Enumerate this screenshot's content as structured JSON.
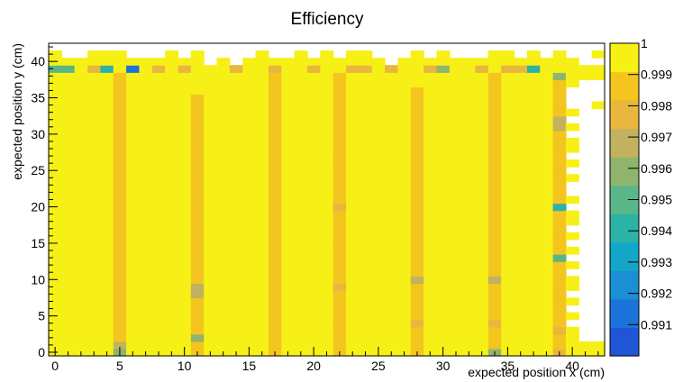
{
  "chart_data": {
    "type": "heatmap",
    "title": "Efficiency",
    "xlabel": "expected position x (cm)",
    "ylabel": "expected position y (cm)",
    "xlim": [
      -0.5,
      42.5
    ],
    "ylim": [
      -0.5,
      42.5
    ],
    "x_ticks": [
      0,
      5,
      10,
      15,
      20,
      25,
      30,
      35,
      40
    ],
    "y_ticks": [
      0,
      5,
      10,
      15,
      20,
      25,
      30,
      35,
      40
    ],
    "colorbar": {
      "range": [
        0.99,
        1.0
      ],
      "ticks": [
        0.991,
        0.992,
        0.993,
        0.994,
        0.995,
        0.996,
        0.997,
        0.998,
        0.999,
        1
      ],
      "tick_labels": [
        "0.991",
        "0.992",
        "0.993",
        "0.994",
        "0.995",
        "0.996",
        "0.997",
        "0.998",
        "0.999",
        "1"
      ],
      "colors": [
        "#1f55d6",
        "#1a73d8",
        "#1a8fd3",
        "#14a6c8",
        "#2ab3a6",
        "#58b688",
        "#8fb46d",
        "#c2b25f",
        "#e9b63e",
        "#f4c51f",
        "#f7f016"
      ]
    },
    "base_efficiency": 0.9995,
    "cells": [
      {
        "x": 0,
        "y": 39,
        "v": 0.9951
      },
      {
        "x": 1,
        "y": 39,
        "v": 0.9951
      },
      {
        "x": 3,
        "y": 39,
        "v": 0.998
      },
      {
        "x": 4,
        "y": 39,
        "v": 0.9938
      },
      {
        "x": 6,
        "y": 39,
        "v": 0.9913
      },
      {
        "x": 8,
        "y": 39,
        "v": 0.998
      },
      {
        "x": 10,
        "y": 39,
        "v": 0.998
      },
      {
        "x": 14,
        "y": 39,
        "v": 0.998
      },
      {
        "x": 17,
        "y": 39,
        "v": 0.998
      },
      {
        "x": 20,
        "y": 39,
        "v": 0.998
      },
      {
        "x": 23,
        "y": 39,
        "v": 0.998
      },
      {
        "x": 24,
        "y": 39,
        "v": 0.998
      },
      {
        "x": 26,
        "y": 39,
        "v": 0.998
      },
      {
        "x": 29,
        "y": 39,
        "v": 0.998
      },
      {
        "x": 30,
        "y": 39,
        "v": 0.9955
      },
      {
        "x": 33,
        "y": 39,
        "v": 0.998
      },
      {
        "x": 35,
        "y": 39,
        "v": 0.998
      },
      {
        "x": 36,
        "y": 39,
        "v": 0.998
      },
      {
        "x": 37,
        "y": 39,
        "v": 0.9942
      },
      {
        "x": 39,
        "y": 38,
        "v": 0.9955
      },
      {
        "x": 39,
        "y": 32,
        "v": 0.9972
      },
      {
        "x": 39,
        "y": 31,
        "v": 0.9972
      },
      {
        "x": 39,
        "y": 20,
        "v": 0.9945
      },
      {
        "x": 39,
        "y": 13,
        "v": 0.9952
      },
      {
        "x": 39,
        "y": 3,
        "v": 0.9975
      },
      {
        "x": 39,
        "y": 0,
        "v": 0.998
      },
      {
        "x": 5,
        "y": 1,
        "v": 0.997
      },
      {
        "x": 5,
        "y": 0,
        "v": 0.996
      },
      {
        "x": 11,
        "y": 9,
        "v": 0.9965
      },
      {
        "x": 11,
        "y": 8,
        "v": 0.997
      },
      {
        "x": 11,
        "y": 2,
        "v": 0.9962
      },
      {
        "x": 22,
        "y": 20,
        "v": 0.9975
      },
      {
        "x": 22,
        "y": 9,
        "v": 0.9975
      },
      {
        "x": 28,
        "y": 10,
        "v": 0.9965
      },
      {
        "x": 28,
        "y": 4,
        "v": 0.9975
      },
      {
        "x": 34,
        "y": 10,
        "v": 0.9972
      },
      {
        "x": 34,
        "y": 4,
        "v": 0.9975
      },
      {
        "x": 34,
        "y": 0,
        "v": 0.996
      }
    ],
    "columns_reduced": [
      {
        "x": 5,
        "from": 0,
        "to": 38,
        "v": 0.9989
      },
      {
        "x": 11,
        "from": 0,
        "to": 35,
        "v": 0.9988
      },
      {
        "x": 17,
        "from": 0,
        "to": 38,
        "v": 0.999
      },
      {
        "x": 22,
        "from": 0,
        "to": 38,
        "v": 0.9986
      },
      {
        "x": 28,
        "from": 0,
        "to": 36,
        "v": 0.9987
      },
      {
        "x": 34,
        "from": 0,
        "to": 38,
        "v": 0.9985
      },
      {
        "x": 39,
        "from": 0,
        "to": 38,
        "v": 0.9989
      }
    ],
    "empty_cells": [
      {
        "x": 1,
        "y": 41
      },
      {
        "x": 2,
        "y": 41
      },
      {
        "x": 6,
        "y": 41
      },
      {
        "x": 7,
        "y": 41
      },
      {
        "x": 8,
        "y": 41
      },
      {
        "x": 10,
        "y": 41
      },
      {
        "x": 12,
        "y": 41
      },
      {
        "x": 13,
        "y": 41
      },
      {
        "x": 14,
        "y": 41
      },
      {
        "x": 15,
        "y": 41
      },
      {
        "x": 17,
        "y": 41
      },
      {
        "x": 18,
        "y": 41
      },
      {
        "x": 20,
        "y": 41
      },
      {
        "x": 22,
        "y": 41
      },
      {
        "x": 25,
        "y": 41
      },
      {
        "x": 26,
        "y": 41
      },
      {
        "x": 27,
        "y": 41
      },
      {
        "x": 29,
        "y": 41
      },
      {
        "x": 31,
        "y": 41
      },
      {
        "x": 32,
        "y": 41
      },
      {
        "x": 33,
        "y": 41
      },
      {
        "x": 36,
        "y": 41
      },
      {
        "x": 38,
        "y": 41
      },
      {
        "x": 40,
        "y": 41
      },
      {
        "x": 41,
        "y": 41
      },
      {
        "x": 12,
        "y": 40
      },
      {
        "x": 14,
        "y": 40
      },
      {
        "x": 26,
        "y": 40
      },
      {
        "x": 41,
        "y": 40
      },
      {
        "x": 42,
        "y": 40
      }
    ],
    "empty_right_edge": [
      {
        "y": 37,
        "from": 41,
        "to": 42
      },
      {
        "y": 36,
        "from": 40,
        "to": 42
      },
      {
        "y": 35,
        "from": 40,
        "to": 42
      },
      {
        "y": 34,
        "from": 40,
        "to": 41
      },
      {
        "y": 33,
        "from": 41,
        "to": 42
      },
      {
        "y": 32,
        "from": 40,
        "to": 42
      },
      {
        "y": 31,
        "from": 41,
        "to": 42
      },
      {
        "y": 30,
        "from": 40,
        "to": 42
      },
      {
        "y": 29,
        "from": 41,
        "to": 42
      },
      {
        "y": 28,
        "from": 41,
        "to": 42
      },
      {
        "y": 27,
        "from": 40,
        "to": 42
      },
      {
        "y": 26,
        "from": 41,
        "to": 42
      },
      {
        "y": 25,
        "from": 40,
        "to": 42
      },
      {
        "y": 24,
        "from": 41,
        "to": 42
      },
      {
        "y": 23,
        "from": 40,
        "to": 42
      },
      {
        "y": 22,
        "from": 40,
        "to": 42
      },
      {
        "y": 21,
        "from": 41,
        "to": 42
      },
      {
        "y": 20,
        "from": 40,
        "to": 42
      },
      {
        "y": 19,
        "from": 41,
        "to": 42
      },
      {
        "y": 18,
        "from": 41,
        "to": 42
      },
      {
        "y": 17,
        "from": 40,
        "to": 42
      },
      {
        "y": 16,
        "from": 41,
        "to": 42
      },
      {
        "y": 15,
        "from": 40,
        "to": 42
      },
      {
        "y": 14,
        "from": 41,
        "to": 42
      },
      {
        "y": 13,
        "from": 40,
        "to": 42
      },
      {
        "y": 12,
        "from": 41,
        "to": 42
      },
      {
        "y": 11,
        "from": 40,
        "to": 42
      },
      {
        "y": 10,
        "from": 41,
        "to": 42
      },
      {
        "y": 9,
        "from": 41,
        "to": 42
      },
      {
        "y": 8,
        "from": 40,
        "to": 42
      },
      {
        "y": 7,
        "from": 41,
        "to": 42
      },
      {
        "y": 6,
        "from": 40,
        "to": 42
      },
      {
        "y": 5,
        "from": 41,
        "to": 42
      },
      {
        "y": 4,
        "from": 40,
        "to": 42
      },
      {
        "y": 3,
        "from": 41,
        "to": 42
      },
      {
        "y": 2,
        "from": 41,
        "to": 42
      }
    ]
  }
}
